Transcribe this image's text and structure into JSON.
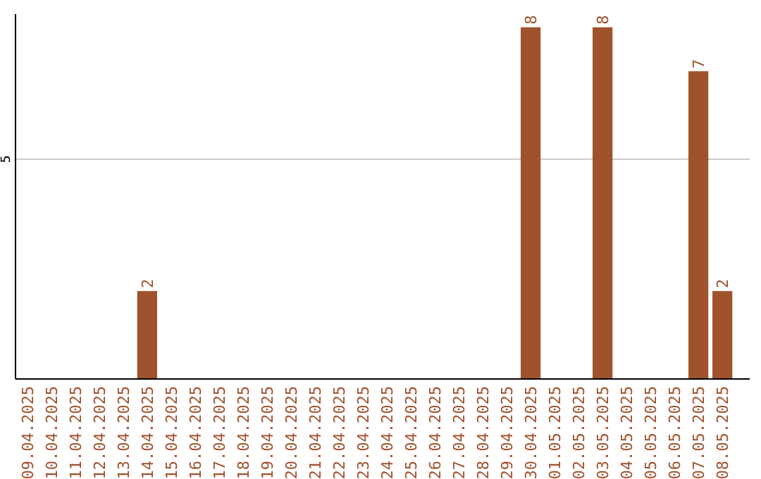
{
  "chart_data": {
    "type": "bar",
    "categories": [
      "09.04.2025",
      "10.04.2025",
      "11.04.2025",
      "12.04.2025",
      "13.04.2025",
      "14.04.2025",
      "15.04.2025",
      "16.04.2025",
      "17.04.2025",
      "18.04.2025",
      "19.04.2025",
      "20.04.2025",
      "21.04.2025",
      "22.04.2025",
      "23.04.2025",
      "24.04.2025",
      "25.04.2025",
      "26.04.2025",
      "27.04.2025",
      "28.04.2025",
      "29.04.2025",
      "30.04.2025",
      "01.05.2025",
      "02.05.2025",
      "03.05.2025",
      "04.05.2025",
      "05.05.2025",
      "06.05.2025",
      "07.05.2025",
      "08.05.2025"
    ],
    "values": [
      0,
      0,
      0,
      0,
      0,
      2,
      0,
      0,
      0,
      0,
      0,
      0,
      0,
      0,
      0,
      0,
      0,
      0,
      0,
      0,
      0,
      8,
      0,
      0,
      8,
      0,
      0,
      0,
      7,
      2
    ],
    "value_labels": [
      null,
      null,
      null,
      null,
      null,
      "2",
      null,
      null,
      null,
      null,
      null,
      null,
      null,
      null,
      null,
      null,
      null,
      null,
      null,
      null,
      null,
      "8",
      null,
      null,
      "8",
      null,
      null,
      null,
      "7",
      "2"
    ],
    "color": "#a0522d",
    "ylim": [
      0,
      8.3
    ],
    "yticks": [
      5
    ],
    "grid": "y"
  }
}
